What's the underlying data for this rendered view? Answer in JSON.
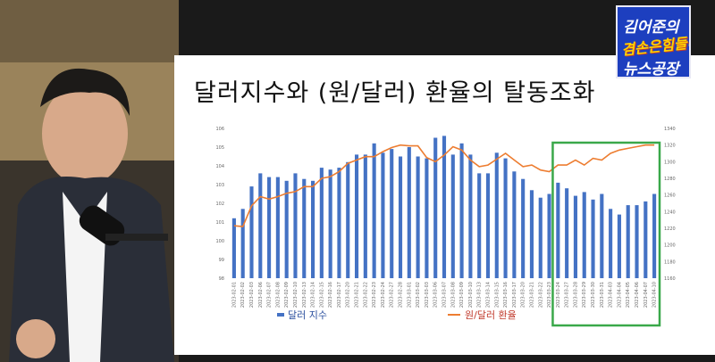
{
  "slide": {
    "title": "달러지수와 (원/달러) 환율의 탈동조화"
  },
  "logo": {
    "line1": "김어준의",
    "line2": "겸손은힘들다",
    "line3": "뉴스공장"
  },
  "colors": {
    "bar": "#4472c4",
    "line": "#ed7d31",
    "highlight": "#3aa84a"
  },
  "chart_data": {
    "type": "bar",
    "title": "",
    "legend": [
      "달러 지수",
      "원/달러 환율"
    ],
    "legend_placement": "bottom",
    "highlight_label": "",
    "categories": [
      "2023-02-01",
      "2023-02-02",
      "2023-02-03",
      "2023-02-06",
      "2023-02-07",
      "2023-02-08",
      "2023-02-09",
      "2023-02-10",
      "2023-02-13",
      "2023-02-14",
      "2023-02-15",
      "2023-02-16",
      "2023-02-17",
      "2023-02-20",
      "2023-02-21",
      "2023-02-22",
      "2023-02-23",
      "2023-02-24",
      "2023-02-27",
      "2023-02-28",
      "2023-03-01",
      "2023-03-02",
      "2023-03-03",
      "2023-03-06",
      "2023-03-07",
      "2023-03-08",
      "2023-03-09",
      "2023-03-10",
      "2023-03-13",
      "2023-03-14",
      "2023-03-15",
      "2023-03-16",
      "2023-03-17",
      "2023-03-20",
      "2023-03-21",
      "2023-03-22",
      "2023-03-23",
      "2023-03-24",
      "2023-03-27",
      "2023-03-28",
      "2023-03-29",
      "2023-03-30",
      "2023-03-31",
      "2023-04-03",
      "2023-04-04",
      "2023-04-05",
      "2023-04-06",
      "2023-04-07",
      "2023-04-10"
    ],
    "y_left": {
      "min": 98,
      "max": 106,
      "ticks": [
        98,
        99,
        100,
        101,
        102,
        103,
        104,
        105,
        106
      ]
    },
    "y_right": {
      "min": 1160,
      "max": 1340,
      "ticks": [
        1160,
        1180,
        1200,
        1220,
        1240,
        1260,
        1280,
        1300,
        1320,
        1340
      ]
    },
    "series": [
      {
        "name": "달러 지수",
        "axis": "left",
        "kind": "bar",
        "values": [
          101.2,
          101.7,
          102.9,
          103.6,
          103.4,
          103.4,
          103.2,
          103.6,
          103.3,
          103.2,
          103.9,
          103.8,
          103.9,
          104.2,
          104.6,
          104.6,
          105.2,
          104.7,
          104.9,
          104.5,
          105.0,
          104.5,
          104.4,
          105.5,
          105.6,
          104.6,
          105.2,
          104.6,
          103.6,
          103.6,
          104.7,
          104.4,
          103.7,
          103.3,
          102.7,
          102.3,
          102.5,
          103.1,
          102.8,
          102.4,
          102.6,
          102.2,
          102.5,
          101.7,
          101.4,
          101.9,
          101.9,
          102.1,
          102.5
        ]
      },
      {
        "name": "원/달러 환율",
        "axis": "right",
        "kind": "line",
        "values": [
          1223,
          1222,
          1247,
          1258,
          1255,
          1258,
          1262,
          1264,
          1270,
          1270,
          1280,
          1282,
          1288,
          1298,
          1302,
          1306,
          1306,
          1312,
          1317,
          1320,
          1319,
          1319,
          1305,
          1300,
          1308,
          1318,
          1314,
          1302,
          1294,
          1296,
          1303,
          1310,
          1302,
          1294,
          1296,
          1290,
          1288,
          1296,
          1296,
          1302,
          1296,
          1304,
          1302,
          1310,
          1314,
          1316,
          1318,
          1320,
          1320
        ]
      }
    ],
    "highlight": {
      "from": "2023-03-24",
      "to": "2023-04-10"
    },
    "grid": false
  }
}
